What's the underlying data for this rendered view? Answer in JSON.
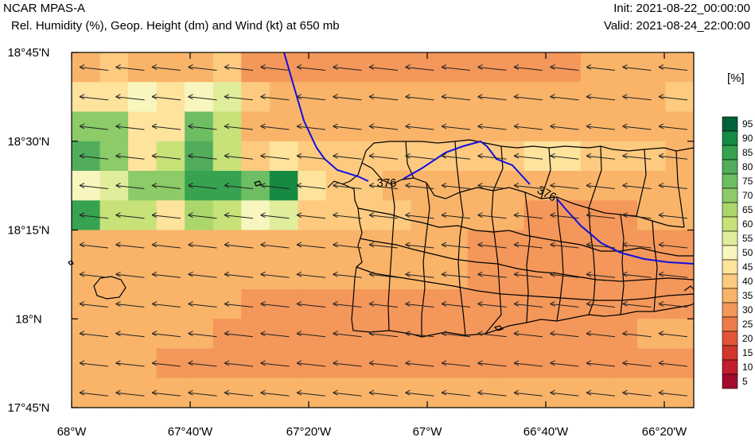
{
  "header": {
    "title": "NCAR MPAS-A",
    "subtitle": "Rel. Humidity (%), Geop. Height (dm) and Wind (kt) at 650 mb",
    "init": "Init: 2021-08-22_00:00:00",
    "valid": "Valid: 2021-08-24_22:00:00"
  },
  "map": {
    "lat_range": [
      17.75,
      18.75
    ],
    "lon_range": [
      -68.0,
      -66.25
    ],
    "lat_ticks": [
      "18°45'N",
      "18°30'N",
      "18°15'N",
      "18°N",
      "17°45'N"
    ],
    "lon_ticks": [
      "68°W",
      "67°40'W",
      "67°20'W",
      "67°W",
      "66°40'W",
      "66°20'W"
    ],
    "contour_labels": [
      "376",
      "376"
    ],
    "wind_direction": "from-east",
    "humidity_grid": [
      [
        35,
        40,
        35,
        35,
        35,
        40,
        30,
        30,
        30,
        30,
        30,
        30,
        30,
        30,
        30,
        30,
        30,
        30,
        35,
        35,
        35,
        35
      ],
      [
        45,
        45,
        50,
        45,
        50,
        55,
        40,
        35,
        35,
        35,
        35,
        35,
        35,
        35,
        35,
        35,
        35,
        35,
        35,
        35,
        35,
        40
      ],
      [
        70,
        70,
        45,
        45,
        75,
        60,
        35,
        35,
        35,
        35,
        35,
        35,
        35,
        35,
        35,
        35,
        35,
        35,
        35,
        35,
        35,
        35
      ],
      [
        80,
        70,
        45,
        60,
        80,
        60,
        40,
        45,
        40,
        40,
        40,
        40,
        40,
        40,
        40,
        40,
        45,
        45,
        40,
        40,
        40,
        35
      ],
      [
        50,
        55,
        70,
        70,
        85,
        85,
        75,
        90,
        45,
        40,
        40,
        35,
        35,
        35,
        35,
        35,
        35,
        35,
        35,
        35,
        35,
        35
      ],
      [
        85,
        60,
        60,
        45,
        65,
        60,
        50,
        55,
        40,
        40,
        40,
        40,
        35,
        35,
        35,
        35,
        30,
        30,
        30,
        30,
        35,
        35
      ],
      [
        35,
        35,
        35,
        35,
        35,
        35,
        35,
        35,
        35,
        35,
        35,
        35,
        35,
        35,
        30,
        30,
        30,
        30,
        30,
        30,
        30,
        30
      ],
      [
        35,
        35,
        35,
        35,
        35,
        35,
        35,
        35,
        35,
        35,
        35,
        35,
        35,
        35,
        30,
        30,
        30,
        30,
        30,
        30,
        30,
        30
      ],
      [
        35,
        35,
        35,
        35,
        35,
        35,
        30,
        30,
        30,
        30,
        30,
        30,
        30,
        30,
        30,
        30,
        30,
        30,
        30,
        30,
        30,
        30
      ],
      [
        35,
        35,
        35,
        35,
        35,
        30,
        30,
        30,
        30,
        30,
        30,
        30,
        30,
        30,
        30,
        30,
        30,
        30,
        30,
        30,
        35,
        35
      ],
      [
        35,
        35,
        35,
        30,
        30,
        30,
        30,
        30,
        30,
        30,
        30,
        30,
        30,
        30,
        30,
        30,
        30,
        30,
        30,
        30,
        30,
        30
      ],
      [
        35,
        35,
        35,
        35,
        35,
        35,
        35,
        35,
        35,
        35,
        35,
        35,
        35,
        35,
        35,
        35,
        35,
        35,
        35,
        35,
        35,
        35
      ]
    ]
  },
  "colorbar": {
    "unit": "[%]",
    "labels": [
      "95",
      "90",
      "85",
      "80",
      "75",
      "70",
      "65",
      "60",
      "55",
      "50",
      "45",
      "40",
      "35",
      "30",
      "25",
      "20",
      "15",
      "10",
      "5"
    ],
    "colors": [
      "#00603a",
      "#168a43",
      "#37a350",
      "#51ad5b",
      "#6ebe63",
      "#8ccb68",
      "#abd66c",
      "#c6e278",
      "#e0ee9c",
      "#f8f6be",
      "#fee39d",
      "#fdca7f",
      "#f9b46a",
      "#f4975a",
      "#ec7b4a",
      "#e2543a",
      "#d3362c",
      "#c21e2e",
      "#a10a2c"
    ]
  }
}
